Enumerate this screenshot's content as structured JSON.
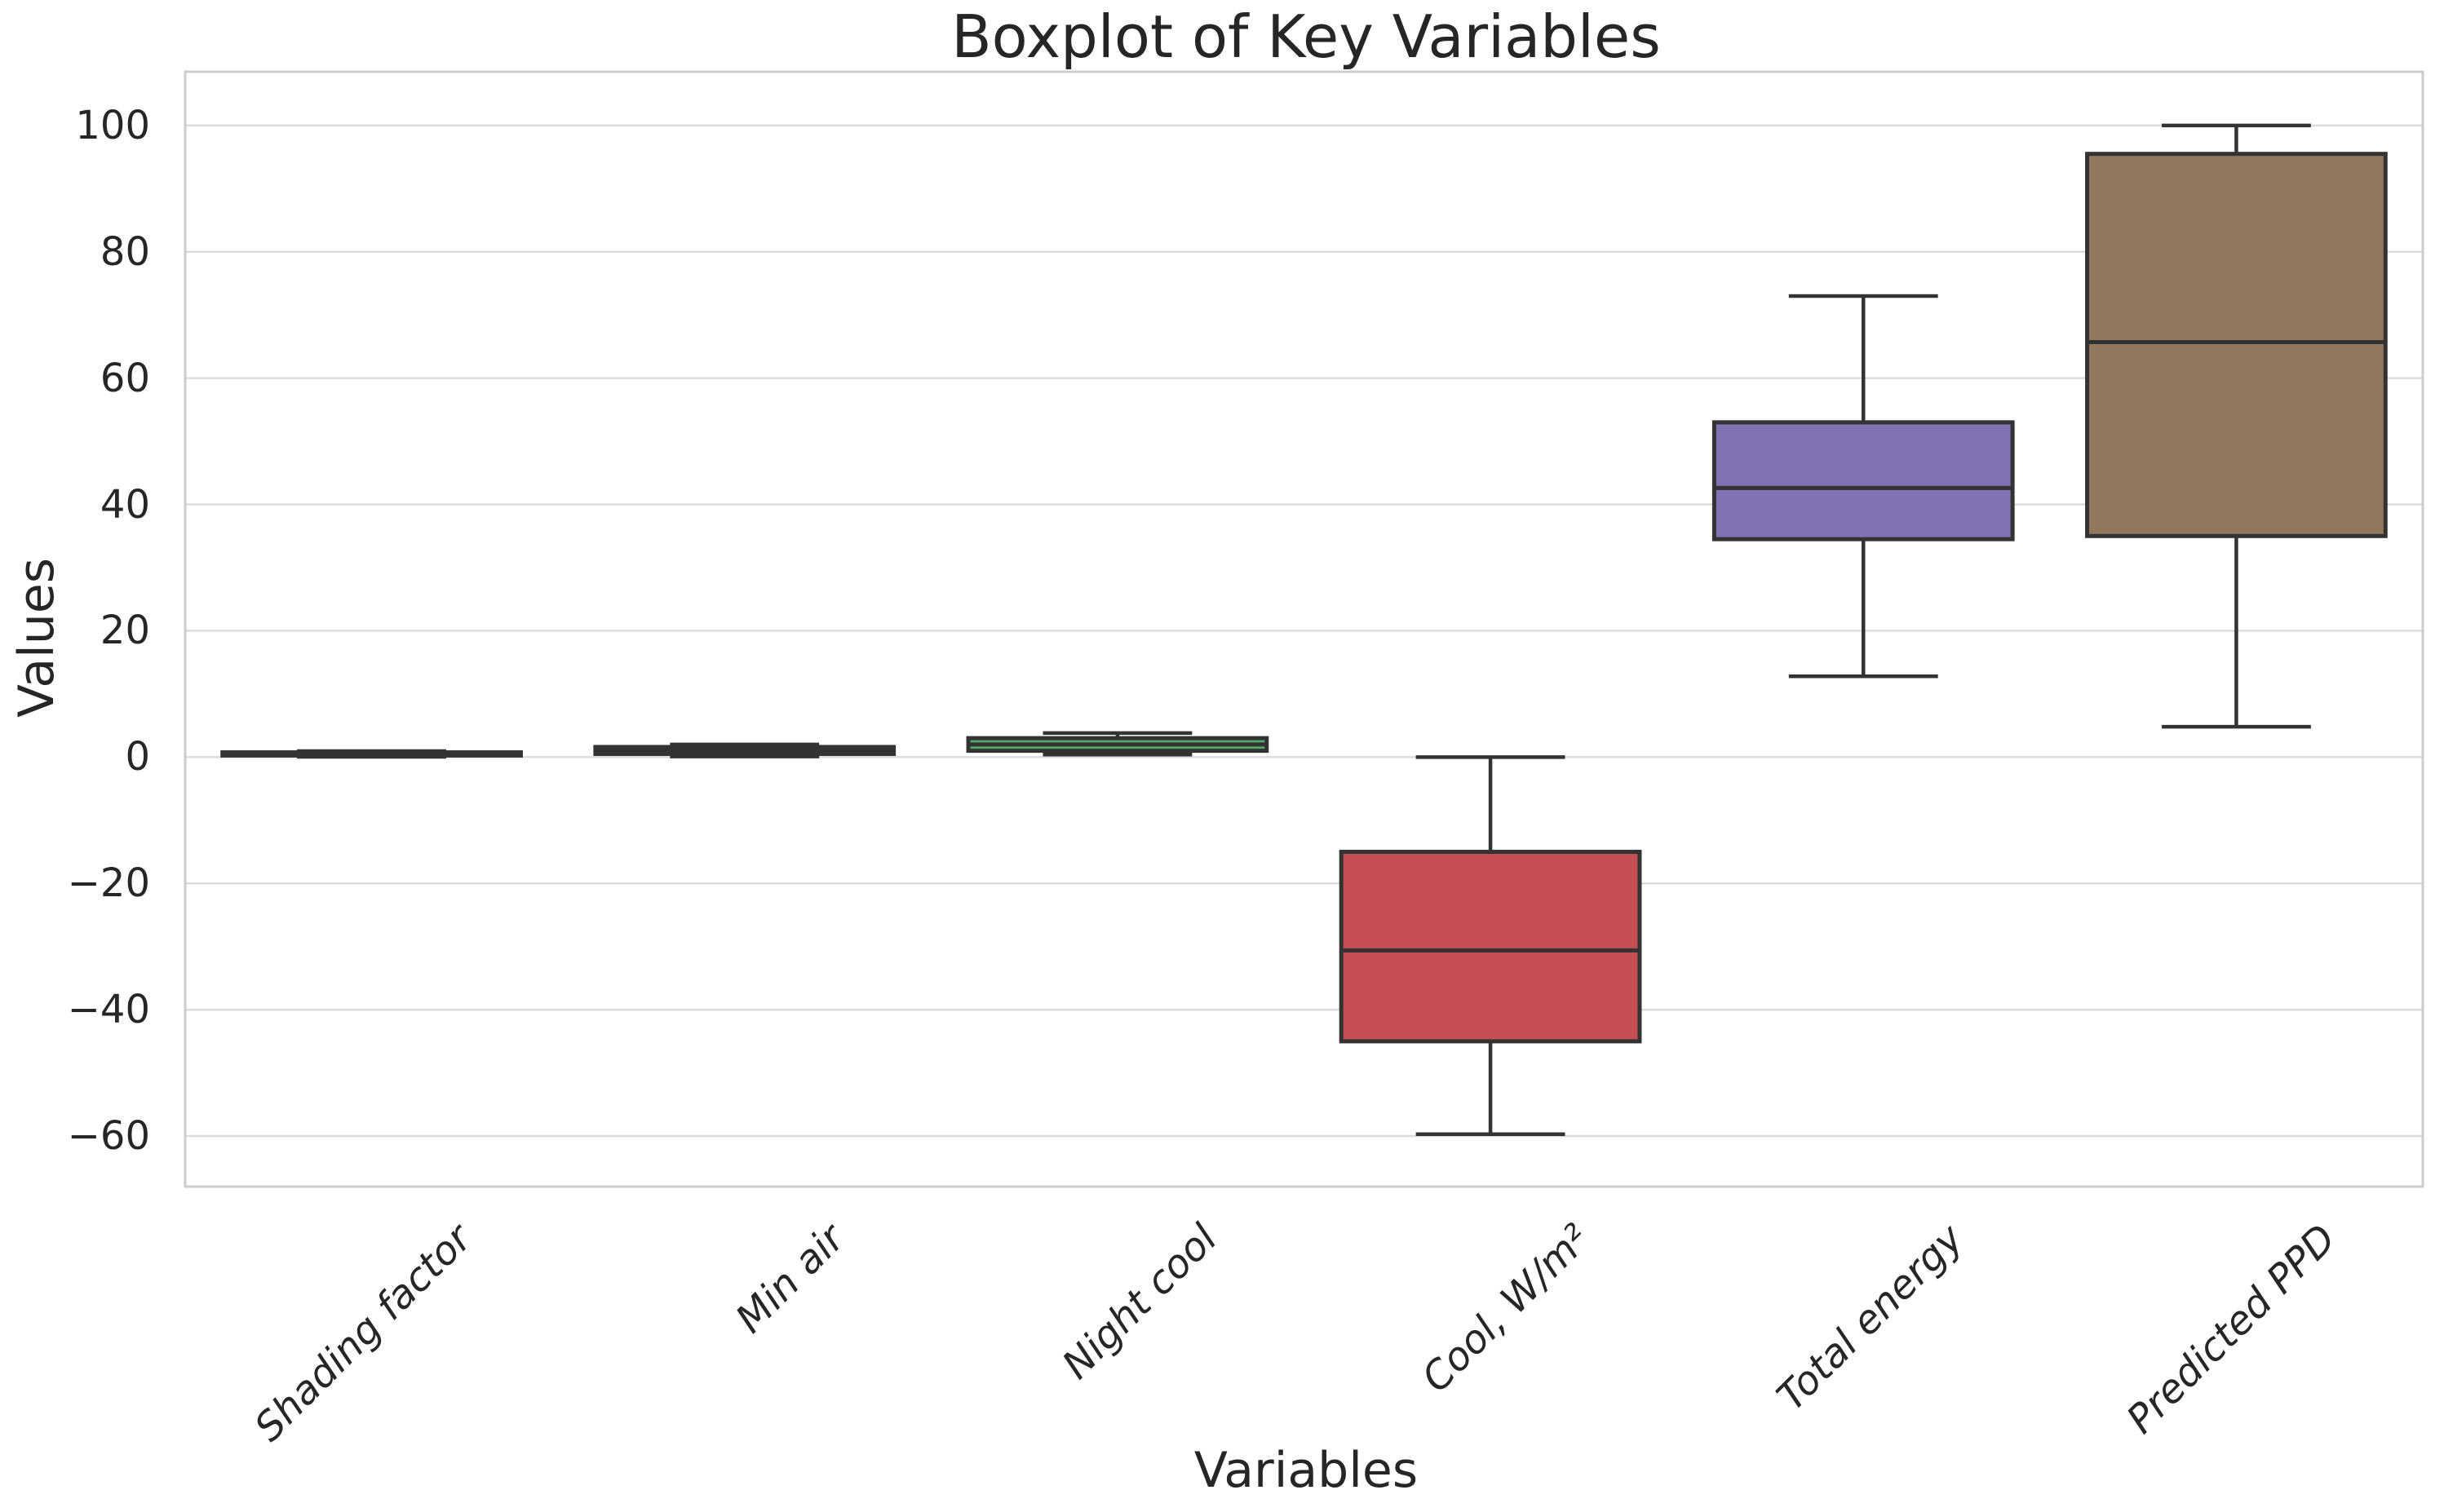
{
  "figure": {
    "title": "Boxplot of Key Variables",
    "xlabel": "Variables",
    "ylabel": "Values"
  },
  "chart_data": {
    "type": "boxplot",
    "title": "Boxplot of Key Variables",
    "xlabel": "Variables",
    "ylabel": "Values",
    "grid": true,
    "legend": false,
    "background": "#ffffff",
    "ylim": [
      -68,
      108.5
    ],
    "yticks": [
      {
        "value": 100,
        "label": "100"
      },
      {
        "value": 80,
        "label": "80"
      },
      {
        "value": 60,
        "label": "60"
      },
      {
        "value": 40,
        "label": "40"
      },
      {
        "value": 20,
        "label": "20"
      },
      {
        "value": 0,
        "label": "0"
      },
      {
        "value": -20,
        "label": "−20"
      },
      {
        "value": -40,
        "label": "−40"
      },
      {
        "value": -60,
        "label": "−60"
      }
    ],
    "categories": [
      "Shading factor",
      "Min air",
      "Night cool",
      "Cool, W/m²",
      "Total energy",
      "Predicted PPD"
    ],
    "series": [
      {
        "name": "Shading factor",
        "color": "#4C72B0",
        "whisker_low": 0.05,
        "q1": 0.25,
        "median": 0.5,
        "q3": 0.75,
        "whisker_high": 0.95
      },
      {
        "name": "Min air",
        "color": "#DD8452",
        "whisker_low": 0.1,
        "q1": 0.5,
        "median": 1.0,
        "q3": 1.6,
        "whisker_high": 2.0
      },
      {
        "name": "Night cool",
        "color": "#55A868",
        "whisker_low": 0.4,
        "q1": 1.0,
        "median": 2.0,
        "q3": 3.0,
        "whisker_high": 3.8
      },
      {
        "name": "Cool, W/m²",
        "color": "#C44E52",
        "whisker_low": -59.7,
        "q1": -45.0,
        "median": -30.6,
        "q3": -15.0,
        "whisker_high": 0.0
      },
      {
        "name": "Total energy",
        "color": "#8172B3",
        "whisker_low": 12.8,
        "q1": 34.5,
        "median": 42.6,
        "q3": 53.0,
        "whisker_high": 73.0
      },
      {
        "name": "Predicted PPD",
        "color": "#937860",
        "whisker_low": 4.8,
        "q1": 35.0,
        "median": 65.7,
        "q3": 95.5,
        "whisker_high": 100.0
      }
    ],
    "styles": {
      "box_edge_color": "#333333",
      "median_color": "#333333",
      "whisker_color": "#333333",
      "grid_color": "#DCDCDC",
      "spine_color": "#CCCCCC",
      "text_color": "#262626"
    }
  }
}
